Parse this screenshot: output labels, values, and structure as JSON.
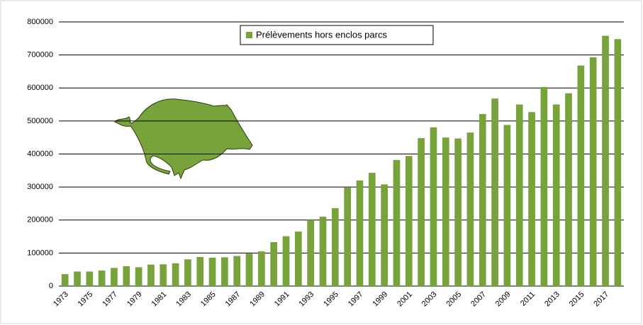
{
  "chart_data": {
    "type": "bar",
    "categories": [
      "1973",
      null,
      "1975",
      null,
      "1977",
      null,
      "1979",
      null,
      "1981",
      null,
      "1983",
      null,
      "1985",
      null,
      "1987",
      null,
      "1989",
      null,
      "1991",
      null,
      "1993",
      null,
      "1995",
      null,
      "1997",
      null,
      "1999",
      null,
      "2001",
      null,
      "2003",
      null,
      "2005",
      null,
      "2007",
      null,
      "2009",
      null,
      "2011",
      null,
      "2013",
      null,
      "2015",
      null,
      "2017",
      null
    ],
    "series": [
      {
        "name": "Prélèvements hors enclos parcs",
        "color": "#77a33a",
        "values": [
          36000,
          44000,
          44000,
          47000,
          55000,
          60000,
          57000,
          65000,
          66000,
          69000,
          81000,
          88000,
          86000,
          87000,
          91000,
          98000,
          105000,
          133000,
          151000,
          165000,
          200000,
          210000,
          236000,
          298000,
          320000,
          343000,
          308000,
          382000,
          394000,
          448000,
          481000,
          450000,
          447000,
          465000,
          521000,
          568000,
          488000,
          550000,
          527000,
          603000,
          550000,
          584000,
          668000,
          693000,
          758000,
          748000
        ]
      }
    ],
    "ylim": [
      0,
      800000
    ],
    "yticks": [
      0,
      100000,
      200000,
      300000,
      400000,
      500000,
      600000,
      700000,
      800000
    ],
    "grid": true,
    "legend": "top"
  }
}
